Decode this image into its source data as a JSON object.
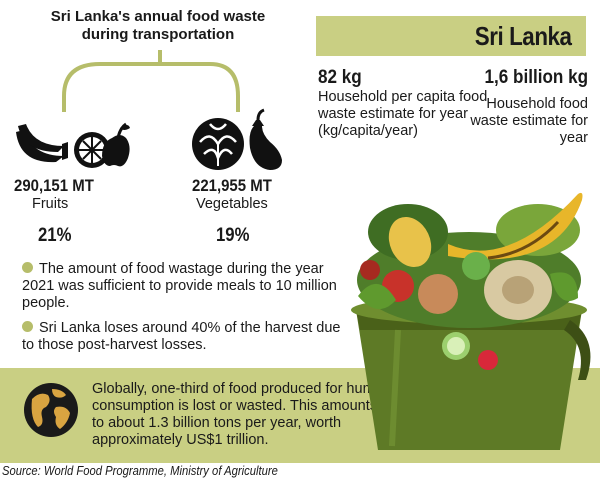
{
  "title": "Sri Lanka's annual food waste during transportation",
  "header": {
    "banner": "Sri Lanka",
    "stats": [
      {
        "value": "82 kg",
        "description": "Household per capita food waste estimate for year (kg/capita/year)"
      },
      {
        "value": "1,6 billion kg",
        "description": "Household food waste estimate for year"
      }
    ]
  },
  "categories": [
    {
      "amount": "290,151 MT",
      "name": "Fruits",
      "percent": "21%",
      "icon": "fruits-icon"
    },
    {
      "amount": "221,955 MT",
      "name": "Vegetables",
      "percent": "19%",
      "icon": "vegetables-icon"
    }
  ],
  "bullets": [
    "The amount of food wastage during the year 2021 was sufficient to provide meals to 10 million people.",
    "Sri Lanka loses around 40% of the harvest due to those post-harvest losses."
  ],
  "global_note": "Globally, one-third of food produced for human consumption is lost or wasted. This amounts to about 1.3 billion tons per year, worth approximately US$1 trillion.",
  "source": "Source: World Food Programme, Ministry of  Agriculture",
  "colors": {
    "accent": "#c9cf83",
    "bullet": "#b6bd6a",
    "bin": "#5e7a26"
  }
}
